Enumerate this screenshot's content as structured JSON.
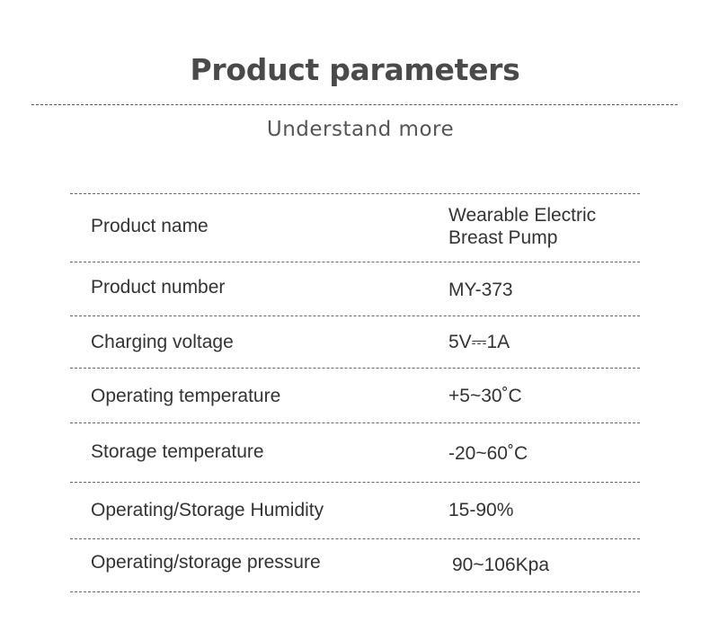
{
  "title": "Product parameters",
  "subtitle": "Understand more",
  "rows": [
    {
      "label": "Product name",
      "value": "Wearable Electric\nBreast Pump",
      "value_line1": "Wearable Electric",
      "value_line2": "Breast Pump"
    },
    {
      "label": "Product number",
      "value": "MY-373"
    },
    {
      "label": "Charging voltage",
      "value": "5V⎓1A"
    },
    {
      "label": "Operating temperature",
      "value": "+5~30˚C"
    },
    {
      "label": "Storage temperature",
      "value": "-20~60˚C"
    },
    {
      "label": "Operating/Storage Humidity",
      "value": "15-90%"
    },
    {
      "label": "Operating/storage pressure",
      "value": "90~106Kpa"
    }
  ]
}
